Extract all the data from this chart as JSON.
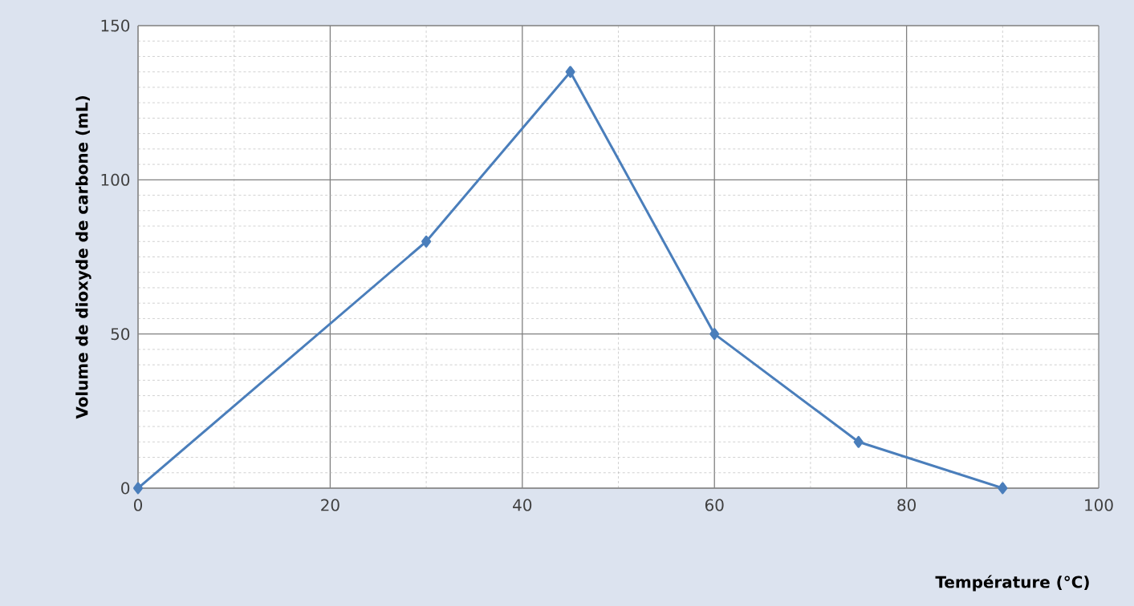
{
  "chart_data": {
    "type": "line",
    "xlabel": "Température (°C)",
    "ylabel": "Volume de dioxyde de carbone (mL)",
    "x": [
      0,
      30,
      45,
      60,
      75,
      90
    ],
    "series": [
      {
        "color": "#4a7ebb",
        "values": [
          0,
          80,
          135,
          50,
          15,
          0
        ]
      }
    ],
    "xlim": [
      0,
      100
    ],
    "ylim": [
      0,
      150
    ],
    "xticks": [
      0,
      20,
      40,
      60,
      80,
      100
    ],
    "yticks": [
      0,
      50,
      100,
      150
    ],
    "grid": true,
    "marker": "diamond",
    "line_style": "solid"
  }
}
